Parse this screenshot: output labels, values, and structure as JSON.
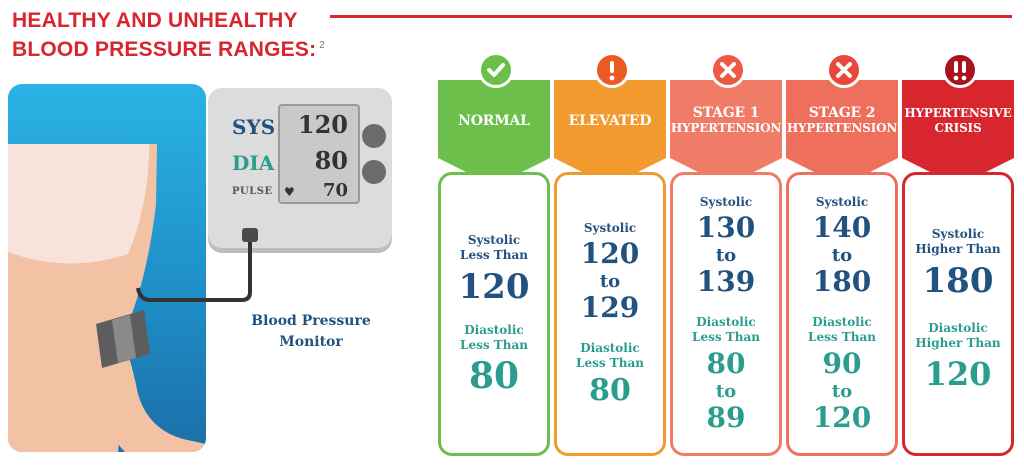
{
  "header": {
    "title_line1": "HEALTHY AND UNHEALTHY",
    "title_line2": "BLOOD PRESSURE RANGES:",
    "footnote": "2"
  },
  "monitor": {
    "sys_label": "SYS",
    "dia_label": "DIA",
    "pulse_label": "PULSE",
    "sys_value": "120",
    "dia_value": "80",
    "pulse_value": "70",
    "caption_line1": "Blood Pressure",
    "caption_line2": "Monitor"
  },
  "categories": [
    {
      "name": "NORMAL",
      "icon": "check-icon",
      "color": "#6cbf4b",
      "systolic_label1": "Systolic",
      "systolic_label2": "Less Than",
      "systolic_value": "120",
      "diastolic_label1": "Diastolic",
      "diastolic_label2": "Less Than",
      "diastolic_value": "80"
    },
    {
      "name": "ELEVATED",
      "icon": "exclamation-icon",
      "color": "#f39a2e",
      "systolic_label": "Systolic",
      "systolic_from": "120",
      "systolic_to": "to",
      "systolic_until": "129",
      "diastolic_label1": "Diastolic",
      "diastolic_label2": "Less Than",
      "diastolic_value": "80"
    },
    {
      "name_line1": "STAGE 1",
      "name_line2": "HYPERTENSION",
      "icon": "x-icon",
      "color": "#f07b66",
      "systolic_label": "Systolic",
      "systolic_from": "130",
      "systolic_to": "to",
      "systolic_until": "139",
      "diastolic_label1": "Diastolic",
      "diastolic_label2": "Less Than",
      "diastolic_from": "80",
      "diastolic_to": "to",
      "diastolic_until": "89"
    },
    {
      "name_line1": "STAGE 2",
      "name_line2": "HYPERTENSION",
      "icon": "x-icon",
      "color": "#ef6f5d",
      "systolic_label": "Systolic",
      "systolic_from": "140",
      "systolic_to": "to",
      "systolic_until": "180",
      "diastolic_label1": "Diastolic",
      "diastolic_label2": "Less Than",
      "diastolic_from": "90",
      "diastolic_to": "to",
      "diastolic_until": "120"
    },
    {
      "name_line1": "HYPERTENSIVE",
      "name_line2": "CRISIS",
      "icon": "double-exclamation-icon",
      "color": "#d7262e",
      "systolic_label1": "Systolic",
      "systolic_label2": "Higher Than",
      "systolic_value": "180",
      "diastolic_label1": "Diastolic",
      "diastolic_label2": "Higher Than",
      "diastolic_value": "120"
    }
  ]
}
